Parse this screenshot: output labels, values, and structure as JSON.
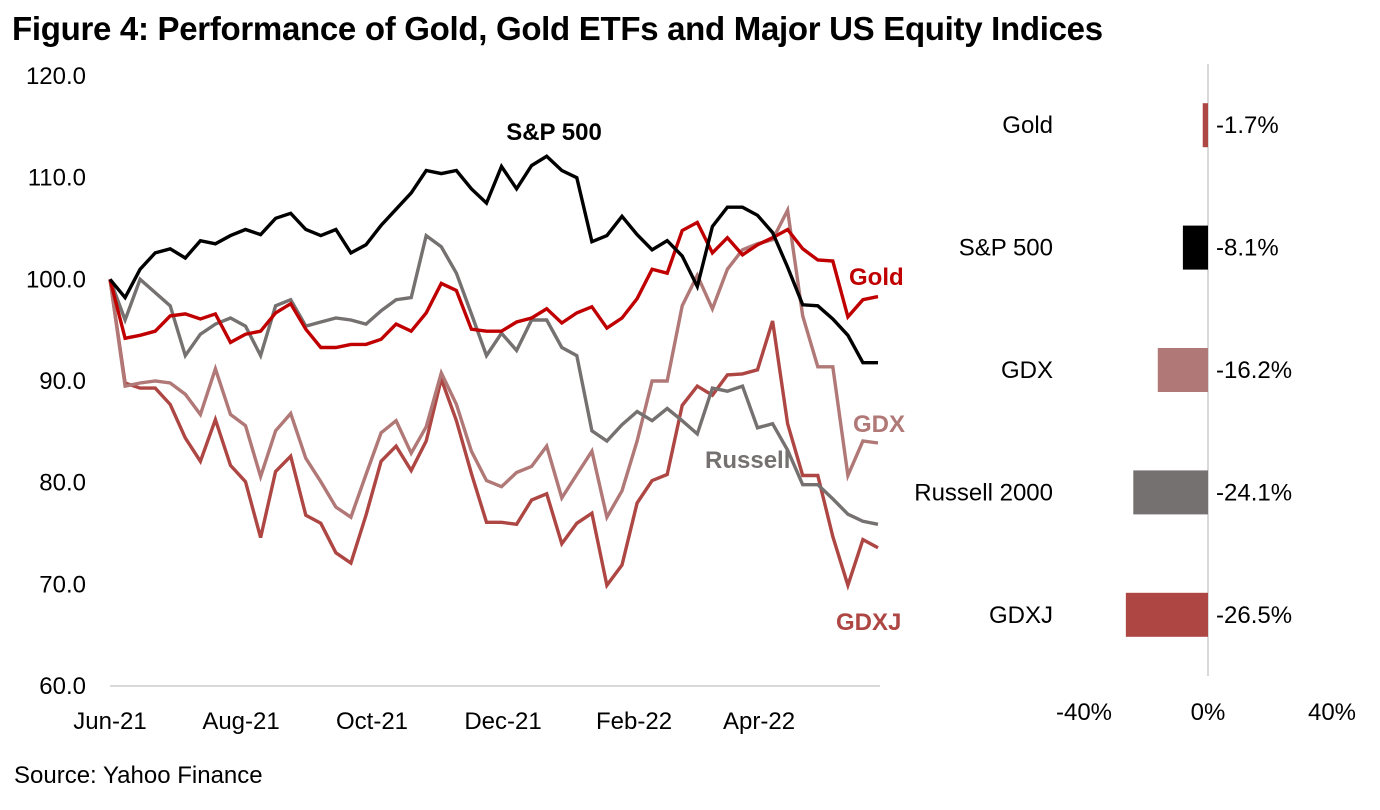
{
  "title": "Figure 4: Performance of Gold, Gold ETFs and Major US Equity Indices",
  "source": "Source: Yahoo Finance",
  "chart_data": [
    {
      "type": "line",
      "title": "",
      "xlabel": "",
      "ylabel": "",
      "ylim": [
        60,
        120
      ],
      "yticks": [
        "60.0",
        "70.0",
        "80.0",
        "90.0",
        "100.0",
        "110.0",
        "120.0"
      ],
      "ytick_values": [
        60,
        70,
        80,
        90,
        100,
        110,
        120
      ],
      "xtick_labels": [
        "Jun-21",
        "Aug-21",
        "Oct-21",
        "Dec-21",
        "Feb-22",
        "Apr-22"
      ],
      "xtick_index": [
        0,
        8.7,
        17.4,
        26.1,
        34.8,
        43.1
      ],
      "n_points": 52,
      "grid": false,
      "series": [
        {
          "name": "S&P 500",
          "color": "#000000",
          "label_color": "#000000",
          "values": [
            100.0,
            98.2,
            101.0,
            102.6,
            103.0,
            102.1,
            103.8,
            103.5,
            104.3,
            104.9,
            104.4,
            106.0,
            106.5,
            104.9,
            104.3,
            104.9,
            102.6,
            103.4,
            105.3,
            106.9,
            108.5,
            110.7,
            110.4,
            110.7,
            108.9,
            107.5,
            111.1,
            108.9,
            111.2,
            112.1,
            110.7,
            110.0,
            103.7,
            104.3,
            106.2,
            104.4,
            102.9,
            103.8,
            102.3,
            99.3,
            105.2,
            107.1,
            107.1,
            106.3,
            104.6,
            101.2,
            97.5,
            97.4,
            96.1,
            94.5,
            91.8,
            91.8
          ]
        },
        {
          "name": "Gold",
          "color": "#c00000",
          "label_color": "#c00000",
          "values": [
            100.0,
            94.2,
            94.5,
            94.9,
            96.4,
            96.6,
            96.1,
            96.6,
            93.8,
            94.6,
            94.9,
            96.7,
            97.6,
            95.1,
            93.3,
            93.3,
            93.6,
            93.6,
            94.1,
            95.6,
            94.9,
            96.7,
            99.6,
            98.9,
            95.1,
            94.9,
            94.9,
            95.8,
            96.2,
            97.1,
            95.7,
            96.7,
            97.3,
            95.2,
            96.2,
            98.1,
            101.0,
            100.6,
            104.8,
            105.6,
            102.6,
            104.1,
            102.4,
            103.4,
            104.1,
            104.9,
            103.0,
            101.9,
            101.8,
            96.3,
            98.0,
            98.3
          ]
        },
        {
          "name": "GDX",
          "color": "#b07876",
          "label_color": "#b07876",
          "values": [
            100.0,
            89.5,
            89.8,
            90.0,
            89.8,
            88.7,
            86.7,
            91.2,
            86.7,
            85.6,
            80.6,
            85.1,
            86.8,
            82.4,
            80.1,
            77.6,
            76.6,
            80.8,
            84.9,
            86.1,
            82.9,
            85.5,
            90.8,
            87.7,
            83.1,
            80.2,
            79.6,
            81.0,
            81.6,
            83.6,
            78.5,
            80.8,
            83.1,
            76.6,
            79.2,
            84.1,
            90.0,
            90.0,
            97.4,
            100.4,
            97.1,
            101.0,
            102.9,
            103.5,
            103.9,
            106.8,
            96.4,
            91.4,
            91.4,
            80.7,
            84.1,
            83.9
          ]
        },
        {
          "name": "Russell",
          "color": "#767171",
          "label_color": "#767171",
          "values": [
            100.0,
            96.0,
            100.0,
            98.7,
            97.4,
            92.5,
            94.6,
            95.6,
            96.2,
            95.4,
            92.5,
            97.4,
            98.0,
            95.4,
            95.8,
            96.2,
            96.0,
            95.6,
            96.9,
            98.0,
            98.2,
            104.3,
            103.2,
            100.6,
            96.6,
            92.5,
            94.7,
            93.0,
            96.0,
            96.0,
            93.3,
            92.5,
            85.1,
            84.1,
            85.7,
            87.0,
            86.1,
            87.3,
            86.1,
            84.8,
            89.3,
            89.0,
            89.5,
            85.4,
            85.8,
            83.2,
            79.8,
            79.8,
            78.4,
            76.9,
            76.2,
            75.9
          ]
        },
        {
          "name": "GDXJ",
          "color": "#ae4643",
          "label_color": "#ae4643",
          "values": [
            100.0,
            89.8,
            89.3,
            89.3,
            87.7,
            84.4,
            82.1,
            86.2,
            81.7,
            80.1,
            74.6,
            81.1,
            82.6,
            76.8,
            76.0,
            73.1,
            72.1,
            76.8,
            82.1,
            83.6,
            81.2,
            84.1,
            90.2,
            86.1,
            80.9,
            76.1,
            76.1,
            75.9,
            78.3,
            78.9,
            74.0,
            76.0,
            77.0,
            69.9,
            71.9,
            78.0,
            80.2,
            80.8,
            87.6,
            89.5,
            88.6,
            90.6,
            90.7,
            91.1,
            95.9,
            85.8,
            80.7,
            80.7,
            74.7,
            69.9,
            74.4,
            73.6
          ]
        }
      ]
    },
    {
      "type": "bar",
      "orientation": "horizontal",
      "title": "",
      "categories": [
        "Gold",
        "S&P 500",
        "GDX",
        "Russell 2000",
        "GDXJ"
      ],
      "values": [
        -1.7,
        -8.1,
        -16.2,
        -24.1,
        -26.5
      ],
      "value_labels": [
        "-1.7%",
        "-8.1%",
        "-16.2%",
        "-24.1%",
        "-26.5%"
      ],
      "colors": [
        "#ae4643",
        "#000000",
        "#b07876",
        "#767171",
        "#ae4643"
      ],
      "xlim": [
        -40,
        40
      ],
      "xtick_labels": [
        "-40%",
        "0%",
        "40%"
      ],
      "xtick_values": [
        -40,
        0,
        40
      ],
      "unit": "%"
    }
  ]
}
